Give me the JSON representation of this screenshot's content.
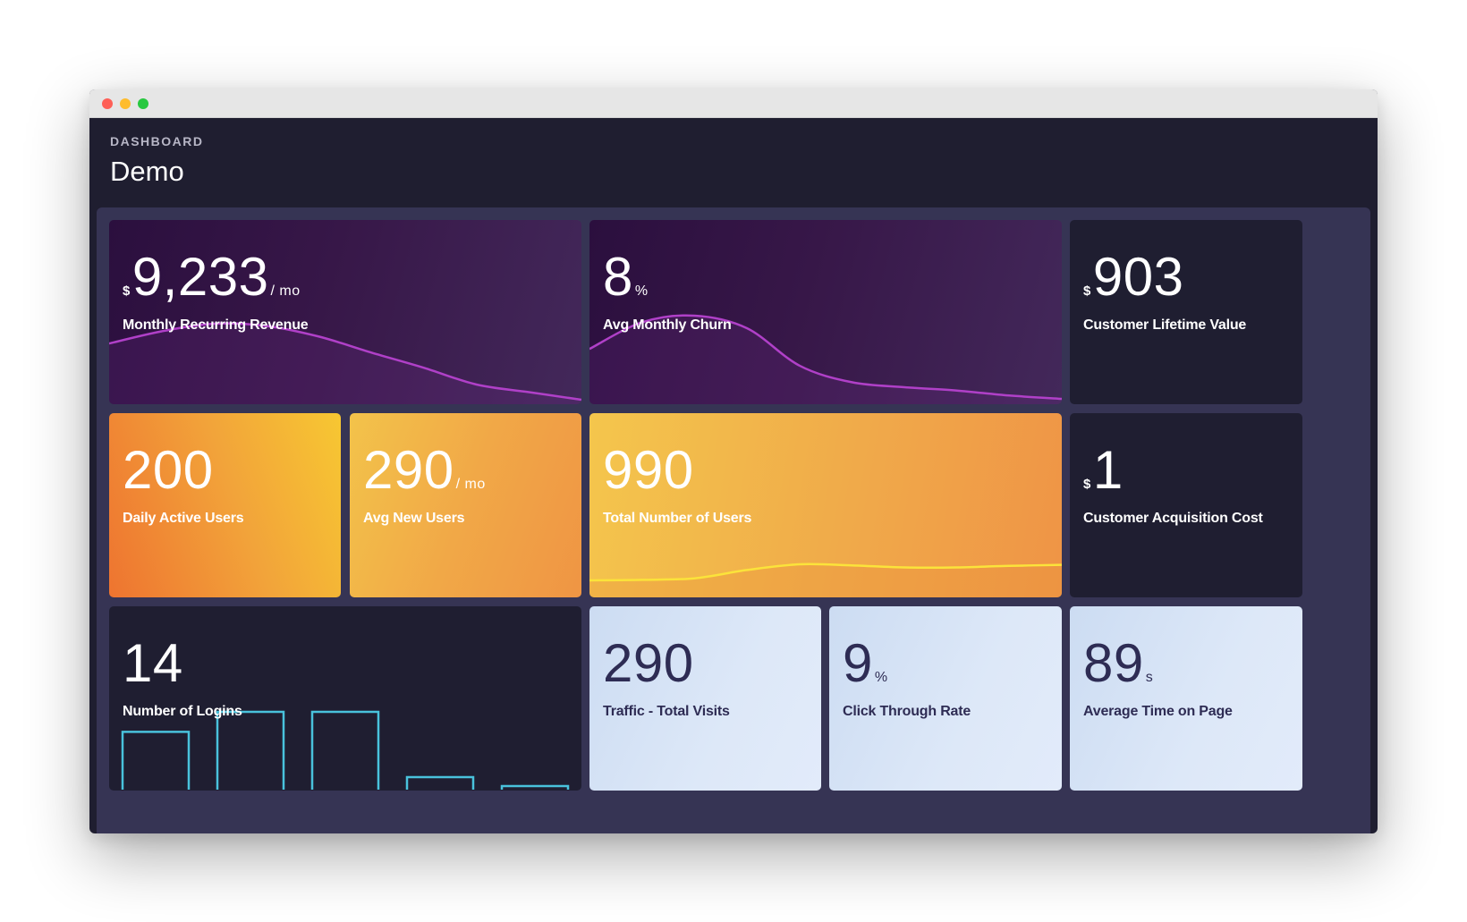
{
  "header": {
    "eyebrow": "DASHBOARD",
    "title": "Demo"
  },
  "tiles": {
    "mrr": {
      "prefix": "$",
      "value": "9,233",
      "suffix": "/ mo",
      "label": "Monthly Recurring Revenue"
    },
    "churn": {
      "value": "8",
      "suffix": "%",
      "label": "Avg Monthly Churn"
    },
    "clv": {
      "prefix": "$",
      "value": "903",
      "label": "Customer Lifetime Value"
    },
    "dau": {
      "value": "200",
      "label": "Daily Active Users"
    },
    "anu": {
      "value": "290",
      "suffix": "/ mo",
      "label": "Avg New Users"
    },
    "tnu": {
      "value": "990",
      "label": "Total Number of Users"
    },
    "cac": {
      "prefix": "$",
      "value": "1",
      "label": "Customer Acquisition Cost"
    },
    "logins": {
      "value": "14",
      "label": "Number of Logins"
    },
    "traffic": {
      "value": "290",
      "label": "Traffic - Total Visits"
    },
    "ctr": {
      "value": "9",
      "suffix": "%",
      "label": "Click Through Rate"
    },
    "atop": {
      "value": "89",
      "suffix": "s",
      "label": "Average Time on Page"
    }
  },
  "colors": {
    "purple_line": "#b040c8",
    "yellow_line": "#fbe33a",
    "bar_stroke": "#49c2dc"
  },
  "sparklines": {
    "mrr": [
      0.74,
      0.9,
      1.0,
      0.97,
      0.83,
      0.62,
      0.42,
      0.2,
      0.1,
      0.0
    ],
    "churn": [
      0.6,
      0.92,
      1.0,
      0.85,
      0.4,
      0.2,
      0.14,
      0.1,
      0.04,
      0.0
    ],
    "tnu": [
      0.0,
      0.02,
      0.08,
      0.4,
      0.62,
      0.58,
      0.5,
      0.5,
      0.56,
      0.6
    ]
  },
  "bars": {
    "logins": [
      0.73,
      1.0,
      1.0,
      0.12,
      0.0
    ]
  }
}
